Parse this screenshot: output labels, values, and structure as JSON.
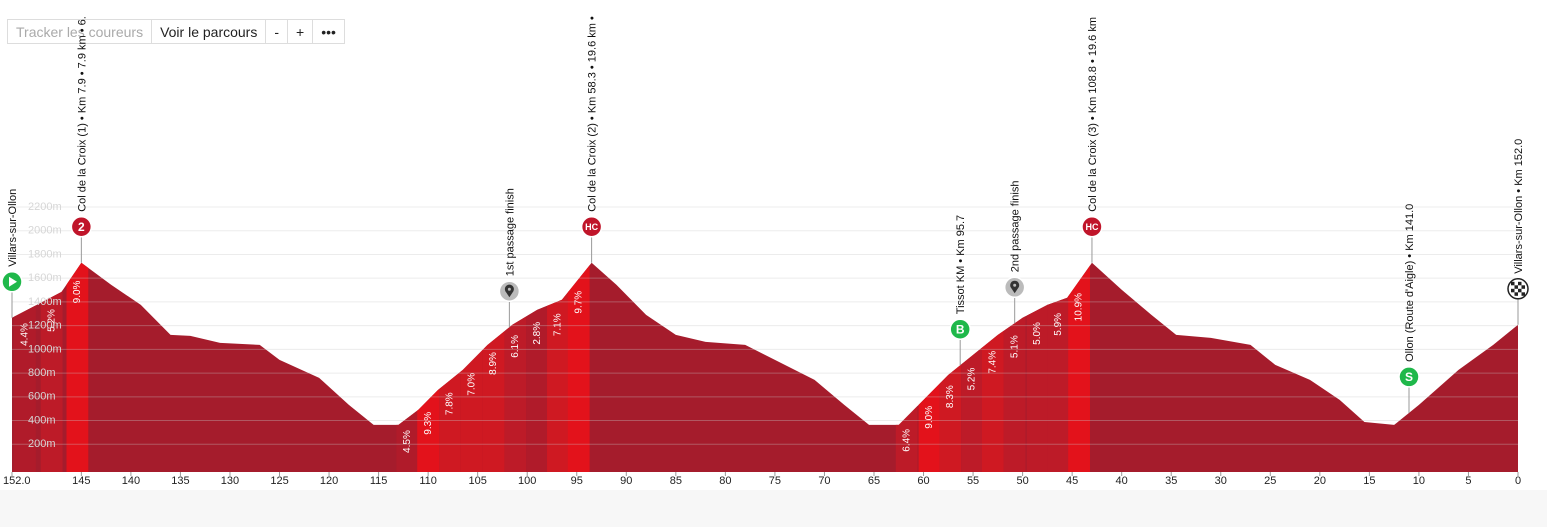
{
  "toolbar": {
    "buttons": [
      "Tracker les coureurs",
      "Voir le parcours",
      "-",
      "+",
      "•••"
    ]
  },
  "chart_data": {
    "type": "area",
    "color": "#a51c2c",
    "x": [
      152,
      149.5,
      147,
      145,
      142,
      139,
      136,
      134,
      131,
      127,
      125,
      121,
      118,
      115.5,
      113,
      111,
      109,
      106.5,
      104,
      101.5,
      99,
      96.5,
      93.5,
      91,
      88,
      85,
      82,
      78,
      75,
      71,
      68,
      65.5,
      62.5,
      60,
      57.5,
      55,
      52.5,
      50,
      47.5,
      45.5,
      43,
      40,
      37,
      34.5,
      31,
      27,
      24.5,
      21,
      18,
      15.5,
      12.5,
      10,
      6,
      2.5,
      0
    ],
    "values": [
      1266,
      1375,
      1485,
      1730,
      1545,
      1375,
      1122,
      1114,
      1055,
      1038,
      911,
      760,
      532,
      363,
      363,
      490,
      658,
      827,
      1038,
      1207,
      1333,
      1418,
      1730,
      1545,
      1291,
      1122,
      1063,
      1038,
      911,
      743,
      532,
      363,
      363,
      574,
      785,
      954,
      1122,
      1266,
      1375,
      1435,
      1730,
      1502,
      1291,
      1122,
      1097,
      1038,
      869,
      743,
      574,
      388,
      363,
      532,
      827,
      1038,
      1207
    ],
    "xlim": [
      152,
      0
    ],
    "xticks": [
      {
        "value": 152,
        "label": "152.0"
      },
      145,
      140,
      135,
      130,
      125,
      120,
      115,
      110,
      105,
      100,
      95,
      90,
      85,
      80,
      75,
      70,
      65,
      60,
      55,
      50,
      45,
      40,
      35,
      30,
      25,
      20,
      15,
      10,
      5,
      0
    ],
    "ylim": [
      0,
      2200
    ],
    "yticks": [
      {
        "value": 200,
        "label": "200m"
      },
      {
        "value": 400,
        "label": "400m"
      },
      {
        "value": 600,
        "label": "600m"
      },
      {
        "value": 800,
        "label": "800m"
      },
      {
        "value": 1000,
        "label": "1000m"
      },
      {
        "value": 1200,
        "label": "1200m"
      },
      {
        "value": 1400,
        "label": "1400m"
      },
      {
        "value": 1600,
        "label": "1600m"
      },
      {
        "value": 1800,
        "label": "1800m"
      },
      {
        "value": 2000,
        "label": "2000m"
      },
      {
        "value": 2200,
        "label": "2200m"
      }
    ],
    "grid": true,
    "gradients": {
      "x": [
        150.7,
        148.0,
        145.4,
        112.1,
        110.0,
        107.8,
        105.6,
        103.4,
        101.2,
        99.0,
        96.9,
        94.8,
        61.7,
        59.4,
        57.3,
        55.1,
        53.0,
        50.8,
        48.5,
        46.4,
        44.3
      ],
      "values": [
        4.4,
        5.2,
        9.0,
        4.5,
        9.3,
        7.8,
        7.0,
        8.9,
        6.1,
        2.8,
        7.1,
        9.7,
        6.4,
        9.0,
        8.3,
        5.2,
        7.4,
        5.1,
        5.0,
        5.9,
        10.9
      ],
      "value_labels": [
        "4.4%",
        "5.2%",
        "9.0%",
        "4.5%",
        "9.3%",
        "7.8%",
        "7.0%",
        "8.9%",
        "6.1%",
        "2.8%",
        "7.1%",
        "9.7%",
        "6.4%",
        "9.0%",
        "8.3%",
        "5.2%",
        "7.4%",
        "5.1%",
        "5.0%",
        "5.9%",
        "10.9%"
      ]
    },
    "markers": [
      {
        "label": "Villars-sur-Ollon",
        "x": 152,
        "kind": "start"
      },
      {
        "label": "Col de la Croix (1) • Km 7.9 • 7.9 km • 6.",
        "x": 145,
        "kind": "climb",
        "badge": "2"
      },
      {
        "label": "1st passage finish",
        "x": 101.8,
        "kind": "pin"
      },
      {
        "label": "Col de la Croix (2) • Km 58.3 • 19.6 km •",
        "x": 93.5,
        "kind": "climb",
        "badge": "HC"
      },
      {
        "label": "Tissot KM • Km 95.7",
        "x": 56.3,
        "kind": "sprint",
        "badge": "B"
      },
      {
        "label": "2nd passage finish",
        "x": 50.8,
        "kind": "pin"
      },
      {
        "label": "Col de la Croix (3) • Km 108.8 • 19.6 km",
        "x": 43,
        "kind": "climb",
        "badge": "HC"
      },
      {
        "label": "Ollon (Route d'Aigle) • Km 141.0",
        "x": 11,
        "kind": "sprint",
        "badge": "S"
      },
      {
        "label": "Villars-sur-Ollon • Km 152.0",
        "x": 0,
        "kind": "finish"
      }
    ]
  }
}
